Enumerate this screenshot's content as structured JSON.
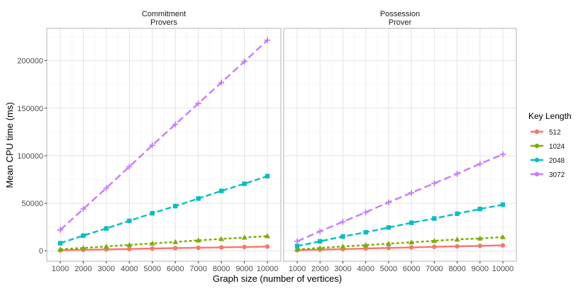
{
  "chart_data": {
    "type": "line",
    "xlabel": "Graph size (number of vertices)",
    "ylabel": "Mean CPU time (ms)",
    "x": [
      1000,
      2000,
      3000,
      4000,
      5000,
      6000,
      7000,
      8000,
      9000,
      10000
    ],
    "x_ticks": [
      "1000",
      "2000",
      "3000",
      "4000",
      "5000",
      "6000",
      "7000",
      "8000",
      "9000",
      "10000"
    ],
    "y_ticks": [
      0,
      50000,
      100000,
      150000,
      200000
    ],
    "ylim": [
      -11000,
      234000
    ],
    "grid": true,
    "legend": {
      "title": "Key Length",
      "position": "right"
    },
    "series_styles": [
      {
        "name": "512",
        "color": "#F8766D",
        "dash": "solid",
        "marker": "circle"
      },
      {
        "name": "1024",
        "color": "#7CAE00",
        "dash": "dotted",
        "marker": "triangle"
      },
      {
        "name": "2048",
        "color": "#00BFC4",
        "dash": "dashed",
        "marker": "square"
      },
      {
        "name": "3072",
        "color": "#C77CFF",
        "dash": "longdash",
        "marker": "cross"
      }
    ],
    "panels": [
      {
        "title_line1": "Commitment",
        "title_line2": "Provers",
        "series": [
          {
            "name": "512",
            "values": [
              500,
              1000,
              1500,
              1900,
              2400,
              2800,
              3200,
              3600,
              4000,
              4400
            ]
          },
          {
            "name": "1024",
            "values": [
              1600,
              3000,
              4500,
              6200,
              7800,
              9300,
              11000,
              12500,
              14000,
              15500
            ]
          },
          {
            "name": "2048",
            "values": [
              8000,
              16000,
              23500,
              31500,
              39500,
              47000,
              55000,
              63000,
              70500,
              78500
            ]
          },
          {
            "name": "3072",
            "values": [
              22000,
              44000,
              66000,
              88500,
              111000,
              133000,
              155000,
              177000,
              199000,
              221500
            ]
          }
        ]
      },
      {
        "title_line1": "Possession",
        "title_line2": "Prover",
        "series": [
          {
            "name": "512",
            "values": [
              600,
              1200,
              1800,
              2400,
              3000,
              3600,
              4200,
              4700,
              5200,
              5700
            ]
          },
          {
            "name": "1024",
            "values": [
              1500,
              3000,
              4500,
              6000,
              7500,
              9000,
              10500,
              12000,
              13000,
              14500
            ]
          },
          {
            "name": "2048",
            "values": [
              5000,
              10000,
              15000,
              19500,
              24500,
              29500,
              34000,
              39000,
              44000,
              48500
            ]
          },
          {
            "name": "3072",
            "values": [
              10000,
              20500,
              30500,
              40500,
              51000,
              61000,
              71000,
              81000,
              91500,
              101500
            ]
          }
        ]
      }
    ]
  }
}
